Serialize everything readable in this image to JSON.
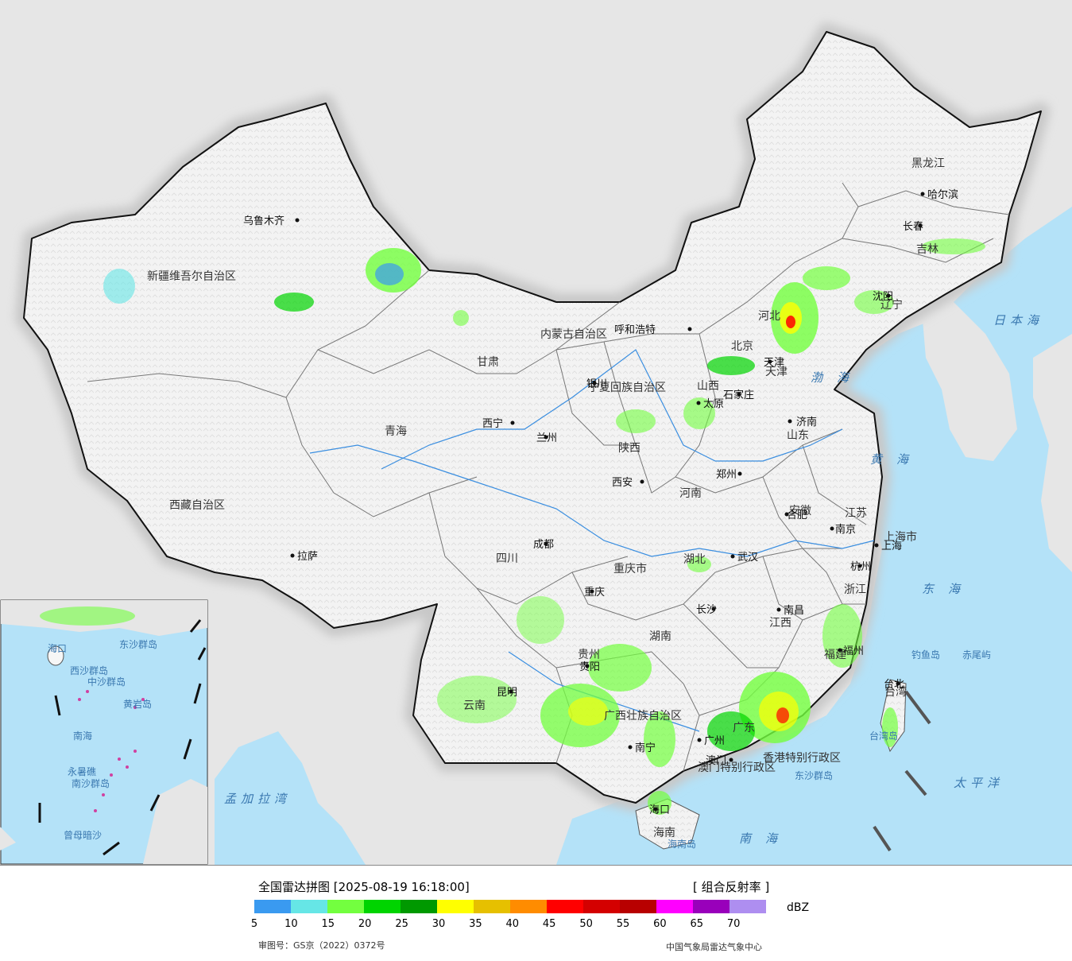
{
  "legend": {
    "title": "全国雷达拼图 [2025-08-19 16:18:00]",
    "product": "[ 组合反射率 ]",
    "unit": "dBZ",
    "scale_colors": [
      "#3a9af0",
      "#66e6e6",
      "#73ff3f",
      "#00d400",
      "#009900",
      "#ffff00",
      "#e6c000",
      "#ff8c00",
      "#ff0000",
      "#d40000",
      "#b80000",
      "#ff00ff",
      "#9900bb",
      "#ae8ef0"
    ],
    "ticks": [
      "5",
      "10",
      "15",
      "20",
      "25",
      "30",
      "35",
      "40",
      "45",
      "50",
      "55",
      "60",
      "65",
      "70"
    ],
    "approval_number": "审图号：GS京（2022）0372号",
    "source": "中国气象局雷达气象中心"
  },
  "map": {
    "colors": {
      "land": "#f6f6f6",
      "sea": "#b4e2f8",
      "foreign": "#e6e6e6",
      "border": "#111111",
      "halo": "#c8c8c8",
      "river": "#3a8ee0"
    },
    "provinces": [
      {
        "name": "新疆维吾尔自治区"
      },
      {
        "name": "西藏自治区"
      },
      {
        "name": "青海"
      },
      {
        "name": "甘肃"
      },
      {
        "name": "内蒙古自治区"
      },
      {
        "name": "黑龙江"
      },
      {
        "name": "吉林"
      },
      {
        "name": "辽宁"
      },
      {
        "name": "河北"
      },
      {
        "name": "山西"
      },
      {
        "name": "陕西"
      },
      {
        "name": "宁夏回族自治区"
      },
      {
        "name": "四川"
      },
      {
        "name": "重庆市"
      },
      {
        "name": "河南"
      },
      {
        "name": "湖北"
      },
      {
        "name": "湖南"
      },
      {
        "name": "贵州"
      },
      {
        "name": "云南"
      },
      {
        "name": "广西壮族自治区"
      },
      {
        "name": "广东"
      },
      {
        "name": "福建"
      },
      {
        "name": "江西"
      },
      {
        "name": "浙江"
      },
      {
        "name": "安徽"
      },
      {
        "name": "江苏"
      },
      {
        "name": "山东"
      },
      {
        "name": "上海市"
      },
      {
        "name": "天津"
      },
      {
        "name": "北京"
      },
      {
        "name": "海南"
      },
      {
        "name": "台湾"
      },
      {
        "name": "香港特别行政区"
      },
      {
        "name": "澳门特别行政区"
      }
    ],
    "cities": [
      {
        "name": "乌鲁木齐"
      },
      {
        "name": "拉萨"
      },
      {
        "name": "西宁"
      },
      {
        "name": "兰州"
      },
      {
        "name": "银川"
      },
      {
        "name": "呼和浩特"
      },
      {
        "name": "哈尔滨"
      },
      {
        "name": "长春"
      },
      {
        "name": "沈阳"
      },
      {
        "name": "石家庄"
      },
      {
        "name": "天津"
      },
      {
        "name": "济南"
      },
      {
        "name": "郑州"
      },
      {
        "name": "西安"
      },
      {
        "name": "成都"
      },
      {
        "name": "重庆"
      },
      {
        "name": "武汉"
      },
      {
        "name": "合肥"
      },
      {
        "name": "南京"
      },
      {
        "name": "上海"
      },
      {
        "name": "杭州"
      },
      {
        "name": "南昌"
      },
      {
        "name": "长沙"
      },
      {
        "name": "贵阳"
      },
      {
        "name": "昆明"
      },
      {
        "name": "南宁"
      },
      {
        "name": "广州"
      },
      {
        "name": "福州"
      },
      {
        "name": "台北"
      },
      {
        "name": "海口"
      },
      {
        "name": "澳门"
      },
      {
        "name": "太原"
      }
    ],
    "seas": [
      {
        "name": "渤海"
      },
      {
        "name": "黄海"
      },
      {
        "name": "东海"
      },
      {
        "name": "南海"
      },
      {
        "name": "日本海"
      },
      {
        "name": "太平洋"
      },
      {
        "name": "孟加拉湾"
      }
    ],
    "islands": [
      {
        "name": "钓鱼岛"
      },
      {
        "name": "赤尾屿"
      },
      {
        "name": "台湾岛"
      },
      {
        "name": "东沙群岛"
      },
      {
        "name": "海南岛"
      }
    ],
    "inset": {
      "labels": [
        {
          "name": "东沙群岛"
        },
        {
          "name": "西沙群岛"
        },
        {
          "name": "中沙群岛"
        },
        {
          "name": "黄岩岛"
        },
        {
          "name": "南海"
        },
        {
          "name": "永暑礁"
        },
        {
          "name": "南沙群岛"
        },
        {
          "name": "曾母暗沙"
        },
        {
          "name": "海口"
        }
      ]
    }
  }
}
